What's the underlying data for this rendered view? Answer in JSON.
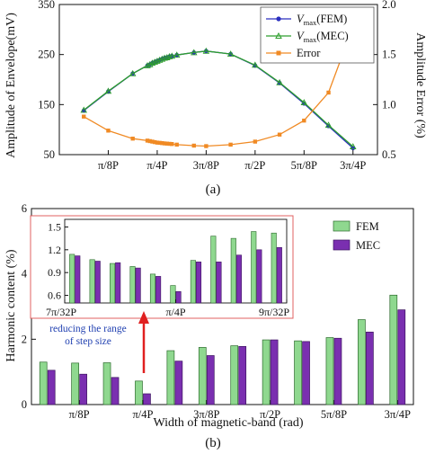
{
  "chart_data": [
    {
      "type": "line",
      "caption": "(a)",
      "x_categories": [
        "π/8P",
        "π/4P",
        "3π/8P",
        "π/2P",
        "5π/8P",
        "3π/4P"
      ],
      "xlim": [
        0,
        6.5
      ],
      "ylabel_left": "Amplitude of Envelope(mV)",
      "ylim_left": [
        50,
        350
      ],
      "yticks_left": [
        "50",
        "150",
        "250",
        "350"
      ],
      "ylabel_right": "Amplitude Error (%)",
      "ylim_right": [
        0.5,
        2.0
      ],
      "yticks_right": [
        "0.5",
        "1.0",
        "1.5",
        "2.0"
      ],
      "legend_position": "top-right",
      "series": [
        {
          "name_main": "V",
          "name_sub": "max",
          "name_suffix": "(FEM)",
          "axis": "left",
          "color": "#2a2fbf",
          "marker": "filled-circle",
          "x": [
            0.5,
            1.0,
            1.5,
            1.8,
            1.85,
            1.9,
            1.95,
            2.0,
            2.05,
            2.1,
            2.15,
            2.2,
            2.25,
            2.3,
            2.4,
            2.75,
            3.0,
            3.5,
            4.0,
            4.5,
            5.0,
            5.5,
            6.0
          ],
          "y": [
            138,
            176,
            212,
            228,
            230,
            233,
            235,
            237,
            239,
            241,
            243,
            244,
            246,
            247,
            249,
            254,
            257,
            251,
            228,
            193,
            152,
            107,
            63
          ]
        },
        {
          "name_main": "V",
          "name_sub": "max",
          "name_suffix": "(MEC)",
          "axis": "left",
          "color": "#2e9e2e",
          "marker": "open-triangle",
          "x": [
            0.5,
            1.0,
            1.5,
            1.8,
            1.85,
            1.9,
            1.95,
            2.0,
            2.05,
            2.1,
            2.15,
            2.2,
            2.25,
            2.3,
            2.4,
            2.75,
            3.0,
            3.5,
            4.0,
            4.5,
            5.0,
            5.5,
            6.0
          ],
          "y": [
            139,
            177,
            212,
            228,
            230,
            233,
            235,
            237,
            239,
            241,
            243,
            244,
            246,
            247,
            249,
            254,
            257,
            251,
            229,
            194,
            154,
            109,
            66
          ]
        },
        {
          "name_main": "Error",
          "name_sub": "",
          "name_suffix": "",
          "axis": "right",
          "color": "#f08a24",
          "marker": "filled-square",
          "x": [
            0.5,
            1.0,
            1.5,
            1.8,
            1.85,
            1.9,
            1.95,
            2.0,
            2.05,
            2.1,
            2.15,
            2.2,
            2.25,
            2.3,
            2.4,
            2.75,
            3.0,
            3.5,
            4.0,
            4.5,
            5.0,
            5.5,
            6.0
          ],
          "y": [
            0.88,
            0.74,
            0.66,
            0.64,
            0.635,
            0.63,
            0.625,
            0.62,
            0.618,
            0.615,
            0.612,
            0.61,
            0.608,
            0.606,
            0.6,
            0.59,
            0.585,
            0.6,
            0.63,
            0.7,
            0.84,
            1.12,
            1.78
          ]
        }
      ]
    },
    {
      "type": "bar",
      "caption": "(b)",
      "xlabel": "Width of magnetic-band (rad)",
      "ylabel": "Harmonic content (%)",
      "ylim": [
        0,
        6
      ],
      "yticks": [
        "0",
        "2",
        "4",
        "6"
      ],
      "x_tick_labels": [
        "π/8P",
        "π/4P",
        "3π/8P",
        "π/2P",
        "5π/8P",
        "3π/4P"
      ],
      "x_tick_positions": [
        1.5,
        3.5,
        5.5,
        7.5,
        9.5,
        11.5
      ],
      "legend_position": "top-right",
      "series": [
        {
          "name": "FEM",
          "color": "#8fd88f",
          "values": [
            1.3,
            1.27,
            1.28,
            0.72,
            1.65,
            1.75,
            1.8,
            1.98,
            1.95,
            2.05,
            2.6,
            3.35
          ]
        },
        {
          "name": "MEC",
          "color": "#7a2fb0",
          "values": [
            1.05,
            0.93,
            0.83,
            0.33,
            1.33,
            1.5,
            1.78,
            1.98,
            1.93,
            2.03,
            2.22,
            2.9
          ]
        }
      ],
      "annotation": {
        "line1": "reducing the range",
        "line2": "of step size",
        "color": "#e02020"
      },
      "inset": {
        "ylim": [
          0.5,
          1.6
        ],
        "yticks": [
          "0.6",
          "0.9",
          "1.2",
          "1.5"
        ],
        "x_tick_labels": [
          "7π/32P",
          "π/4P",
          "9π/32P"
        ],
        "border_color": "#e06060",
        "fem": [
          1.14,
          1.07,
          1.02,
          0.98,
          0.88,
          0.73,
          1.06,
          1.38,
          1.35,
          1.44,
          1.42
        ],
        "mec": [
          1.12,
          1.05,
          1.03,
          0.96,
          0.85,
          0.65,
          1.04,
          1.04,
          1.13,
          1.2,
          1.23
        ]
      }
    }
  ]
}
